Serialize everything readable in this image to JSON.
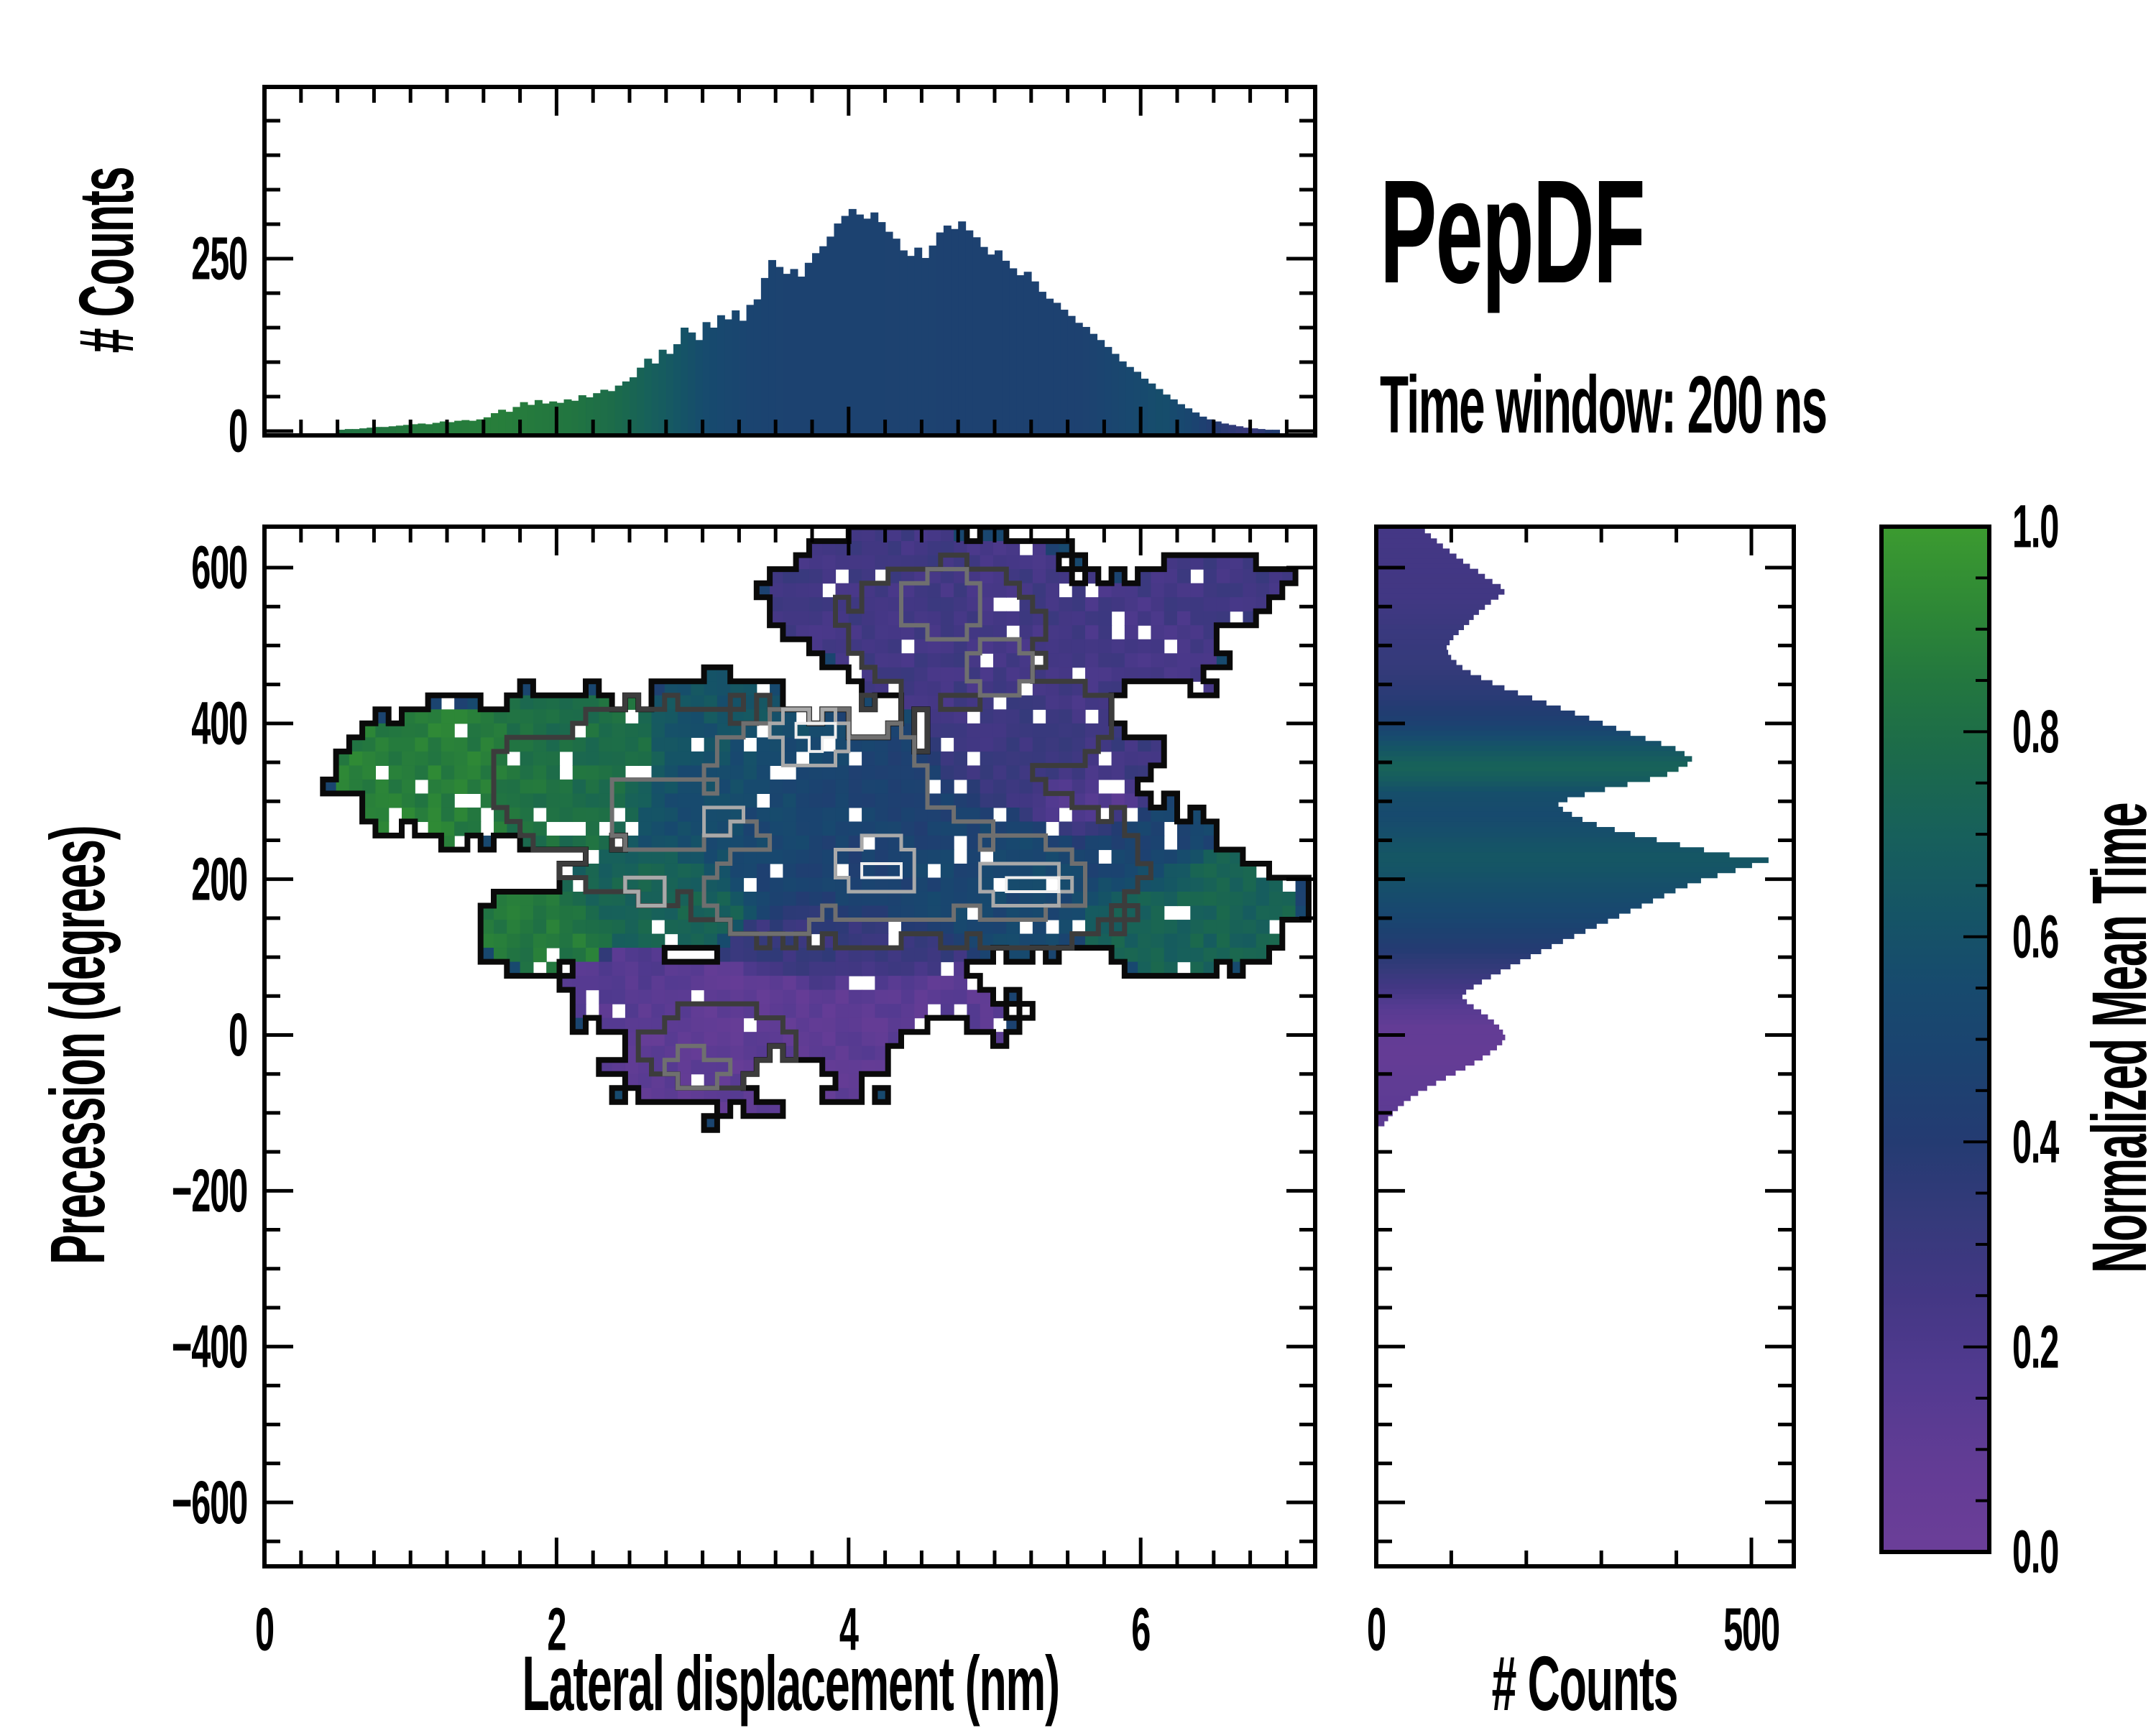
{
  "header": {
    "title": "PepDF",
    "subtitle": "Time window: 200 ns"
  },
  "chart_data": {
    "type": "heatmap",
    "description": "2D histogram of precession vs lateral displacement colored by normalized mean time, with count contours and marginal count histograms",
    "colormap": {
      "label": "Normalized Mean Time",
      "stops": [
        [
          0.0,
          "#6b3e98"
        ],
        [
          0.08,
          "#633c95"
        ],
        [
          0.17,
          "#523a90"
        ],
        [
          0.25,
          "#433784"
        ],
        [
          0.33,
          "#343a7a"
        ],
        [
          0.4,
          "#243b72"
        ],
        [
          0.48,
          "#1b4370"
        ],
        [
          0.55,
          "#174a6e"
        ],
        [
          0.62,
          "#155466"
        ],
        [
          0.7,
          "#17605b"
        ],
        [
          0.78,
          "#1c6b4a"
        ],
        [
          0.85,
          "#23773f"
        ],
        [
          0.92,
          "#2e8836"
        ],
        [
          1.0,
          "#3c9b30"
        ]
      ],
      "ticks": [
        0.0,
        0.2,
        0.4,
        0.6,
        0.8,
        1.0
      ],
      "tick_labels": [
        "0.0",
        "0.2",
        "0.4",
        "0.6",
        "0.8",
        "1.0"
      ],
      "minor_step": 0.05
    },
    "main": {
      "xlabel": "Lateral displacement (nm)",
      "ylabel": "Precession (degrees)",
      "xlim": [
        0,
        7.2
      ],
      "ylim": [
        -682,
        652
      ],
      "xticks": [
        0,
        2,
        4,
        6
      ],
      "xtick_labels": [
        "0",
        "2",
        "4",
        "6"
      ],
      "x_minor_step": 0.25,
      "yticks": [
        600,
        400,
        200,
        0,
        -200,
        -400,
        -600
      ],
      "ytick_labels": [
        "600",
        "400",
        "200",
        "0",
        "−200",
        "−400",
        "−600"
      ],
      "y_minor_step": 50,
      "value_blobs": [
        {
          "cx": 4.25,
          "cy": 565,
          "rx": 0.8,
          "ry": 95,
          "v": 0.26
        },
        {
          "cx": 4.85,
          "cy": 520,
          "rx": 1.0,
          "ry": 120,
          "v": 0.25
        },
        {
          "cx": 5.7,
          "cy": 480,
          "rx": 0.85,
          "ry": 105,
          "v": 0.24
        },
        {
          "cx": 6.5,
          "cy": 575,
          "rx": 0.55,
          "ry": 45,
          "v": 0.26
        },
        {
          "cx": 5.3,
          "cy": 360,
          "rx": 0.85,
          "ry": 95,
          "v": 0.28
        },
        {
          "cx": 5.6,
          "cy": 295,
          "rx": 0.45,
          "ry": 60,
          "v": 0.14
        },
        {
          "cx": 1.3,
          "cy": 335,
          "rx": 0.8,
          "ry": 90,
          "v": 0.88
        },
        {
          "cx": 2.1,
          "cy": 340,
          "rx": 0.8,
          "ry": 105,
          "v": 0.8
        },
        {
          "cx": 1.95,
          "cy": 135,
          "rx": 0.5,
          "ry": 55,
          "v": 0.85
        },
        {
          "cx": 2.75,
          "cy": 180,
          "rx": 0.7,
          "ry": 80,
          "v": 0.72
        },
        {
          "cx": 3.1,
          "cy": 400,
          "rx": 0.55,
          "ry": 65,
          "v": 0.62
        },
        {
          "cx": 3.35,
          "cy": 295,
          "rx": 1.05,
          "ry": 135,
          "v": 0.56
        },
        {
          "cx": 4.1,
          "cy": 250,
          "rx": 1.25,
          "ry": 145,
          "v": 0.45
        },
        {
          "cx": 4.9,
          "cy": 205,
          "rx": 1.15,
          "ry": 105,
          "v": 0.52
        },
        {
          "cx": 5.9,
          "cy": 235,
          "rx": 0.6,
          "ry": 70,
          "v": 0.48
        },
        {
          "cx": 6.3,
          "cy": 160,
          "rx": 0.8,
          "ry": 80,
          "v": 0.72
        },
        {
          "cx": 4.0,
          "cy": 115,
          "rx": 0.9,
          "ry": 60,
          "v": 0.3
        },
        {
          "cx": 3.3,
          "cy": -5,
          "rx": 1.15,
          "ry": 100,
          "v": 0.1
        },
        {
          "cx": 4.35,
          "cy": 30,
          "rx": 0.8,
          "ry": 68,
          "v": 0.12
        },
        {
          "cx": 2.55,
          "cy": 55,
          "rx": 0.5,
          "ry": 58,
          "v": 0.15
        }
      ],
      "holes": [
        {
          "cx": 3.6,
          "cy": -60,
          "rx": 0.3,
          "ry": 38
        },
        {
          "cx": 4.65,
          "cy": -30,
          "rx": 0.4,
          "ry": 48
        },
        {
          "cx": 2.2,
          "cy": -20,
          "rx": 0.28,
          "ry": 26
        },
        {
          "cx": 6.1,
          "cy": 420,
          "rx": 0.3,
          "ry": 40
        }
      ],
      "contour_levels": {
        "colors": [
          "#0a0a0a",
          "#3c3c3c",
          "#6f6f6f",
          "#a9a9a9",
          "#eeeeee"
        ],
        "widths": [
          8,
          7,
          6,
          5,
          4
        ],
        "level2": [
          {
            "cx": 4.0,
            "cy": 280,
            "rx": 1.45,
            "ry": 160
          },
          {
            "cx": 2.7,
            "cy": 300,
            "rx": 0.95,
            "ry": 125
          },
          {
            "cx": 5.05,
            "cy": 215,
            "rx": 1.0,
            "ry": 105
          },
          {
            "cx": 4.65,
            "cy": 520,
            "rx": 0.7,
            "ry": 85
          },
          {
            "cx": 5.35,
            "cy": 400,
            "rx": 0.45,
            "ry": 55
          },
          {
            "cx": 3.1,
            "cy": -15,
            "rx": 0.5,
            "ry": 50
          },
          {
            "cx": 2.0,
            "cy": 330,
            "rx": 0.45,
            "ry": 60
          }
        ],
        "level3": [
          {
            "cx": 3.8,
            "cy": 330,
            "rx": 0.75,
            "ry": 85
          },
          {
            "cx": 4.3,
            "cy": 225,
            "rx": 0.7,
            "ry": 80
          },
          {
            "cx": 5.15,
            "cy": 200,
            "rx": 0.5,
            "ry": 50
          },
          {
            "cx": 2.75,
            "cy": 285,
            "rx": 0.4,
            "ry": 50
          },
          {
            "cx": 3.45,
            "cy": 185,
            "rx": 0.45,
            "ry": 55
          },
          {
            "cx": 4.65,
            "cy": 555,
            "rx": 0.3,
            "ry": 40
          },
          {
            "cx": 5.05,
            "cy": 470,
            "rx": 0.25,
            "ry": 35
          },
          {
            "cx": 2.95,
            "cy": -45,
            "rx": 0.2,
            "ry": 22
          }
        ],
        "level4": [
          {
            "cx": 3.75,
            "cy": 385,
            "rx": 0.28,
            "ry": 36
          },
          {
            "cx": 4.2,
            "cy": 215,
            "rx": 0.27,
            "ry": 36
          },
          {
            "cx": 5.2,
            "cy": 196,
            "rx": 0.33,
            "ry": 30
          },
          {
            "cx": 2.62,
            "cy": 190,
            "rx": 0.15,
            "ry": 20
          },
          {
            "cx": 3.1,
            "cy": 280,
            "rx": 0.14,
            "ry": 18
          }
        ],
        "level5": [
          {
            "cx": 3.76,
            "cy": 387,
            "rx": 0.12,
            "ry": 15
          },
          {
            "cx": 4.22,
            "cy": 212,
            "rx": 0.11,
            "ry": 14
          },
          {
            "cx": 5.26,
            "cy": 194,
            "rx": 0.18,
            "ry": 13
          }
        ]
      }
    },
    "top_marginal": {
      "ylabel": "# Counts",
      "bin_start": 0.5,
      "bin_width": 0.05,
      "ylim": [
        0,
        495
      ],
      "yticks": [
        0,
        250
      ],
      "ytick_labels": [
        "0",
        "250"
      ],
      "y_minor_step": 50,
      "counts": [
        2,
        3,
        3,
        4,
        5,
        6,
        6,
        7,
        8,
        9,
        10,
        11,
        10,
        12,
        14,
        13,
        15,
        16,
        15,
        17,
        20,
        26,
        31,
        28,
        35,
        42,
        38,
        45,
        40,
        43,
        41,
        46,
        44,
        52,
        49,
        55,
        60,
        58,
        66,
        72,
        78,
        92,
        105,
        98,
        118,
        112,
        126,
        150,
        143,
        132,
        158,
        150,
        168,
        162,
        175,
        160,
        183,
        191,
        222,
        248,
        238,
        228,
        235,
        224,
        244,
        258,
        268,
        282,
        301,
        312,
        322,
        314,
        308,
        317,
        303,
        289,
        279,
        262,
        254,
        266,
        251,
        269,
        288,
        298,
        293,
        304,
        291,
        281,
        267,
        256,
        262,
        247,
        236,
        226,
        231,
        217,
        202,
        192,
        186,
        176,
        167,
        157,
        151,
        141,
        132,
        122,
        112,
        101,
        93,
        86,
        76,
        69,
        61,
        53,
        46,
        39,
        33,
        27,
        21,
        17,
        14,
        11,
        9,
        7,
        5,
        4,
        3,
        2,
        2
      ],
      "t_stops": [
        [
          0.5,
          0.82
        ],
        [
          1.0,
          0.86
        ],
        [
          1.6,
          0.88
        ],
        [
          2.1,
          0.84
        ],
        [
          2.4,
          0.78
        ],
        [
          2.7,
          0.68
        ],
        [
          3.0,
          0.56
        ],
        [
          3.3,
          0.49
        ],
        [
          3.6,
          0.47
        ],
        [
          5.6,
          0.46
        ],
        [
          5.9,
          0.52
        ],
        [
          6.15,
          0.58
        ],
        [
          6.35,
          0.5
        ],
        [
          6.55,
          0.38
        ],
        [
          6.75,
          0.3
        ],
        [
          6.9,
          0.42
        ]
      ]
    },
    "right_marginal": {
      "xlabel": "# Counts",
      "bin_start": 657,
      "bin_step": -6.5,
      "xlim": [
        0,
        555
      ],
      "xticks": [
        0,
        500
      ],
      "xtick_labels": [
        "0",
        "500"
      ],
      "x_minor_step": 100,
      "counts": [
        55,
        62,
        70,
        78,
        86,
        95,
        104,
        113,
        122,
        133,
        142,
        152,
        163,
        168,
        160,
        150,
        142,
        134,
        127,
        121,
        114,
        107,
        100,
        95,
        91,
        93,
        97,
        104,
        112,
        123,
        137,
        152,
        168,
        186,
        205,
        224,
        243,
        262,
        281,
        299,
        317,
        336,
        356,
        377,
        396,
        408,
        418,
        412,
        400,
        385,
        362,
        332,
        302,
        275,
        252,
        240,
        246,
        258,
        272,
        291,
        315,
        342,
        371,
        402,
        434,
        468,
        520,
        498,
        476,
        452,
        430,
        412,
        396,
        381,
        366,
        351,
        336,
        321,
        306,
        291,
        276,
        261,
        246,
        231,
        217,
        203,
        189,
        176,
        163,
        150,
        138,
        127,
        117,
        112,
        118,
        127,
        137,
        146,
        154,
        161,
        166,
        169,
        165,
        158,
        149,
        139,
        128,
        116,
        103,
        90,
        77,
        65,
        53,
        43,
        34,
        26,
        19,
        13,
        8
      ],
      "t_stops": [
        [
          660,
          0.24
        ],
        [
          560,
          0.26
        ],
        [
          520,
          0.3
        ],
        [
          470,
          0.33
        ],
        [
          430,
          0.38
        ],
        [
          400,
          0.46
        ],
        [
          370,
          0.62
        ],
        [
          345,
          0.72
        ],
        [
          330,
          0.68
        ],
        [
          310,
          0.58
        ],
        [
          280,
          0.55
        ],
        [
          250,
          0.6
        ],
        [
          228,
          0.64
        ],
        [
          200,
          0.6
        ],
        [
          170,
          0.55
        ],
        [
          140,
          0.48
        ],
        [
          110,
          0.4
        ],
        [
          85,
          0.33
        ],
        [
          60,
          0.25
        ],
        [
          35,
          0.15
        ],
        [
          10,
          0.08
        ],
        [
          -30,
          0.07
        ],
        [
          -70,
          0.1
        ],
        [
          -110,
          0.12
        ]
      ]
    }
  }
}
